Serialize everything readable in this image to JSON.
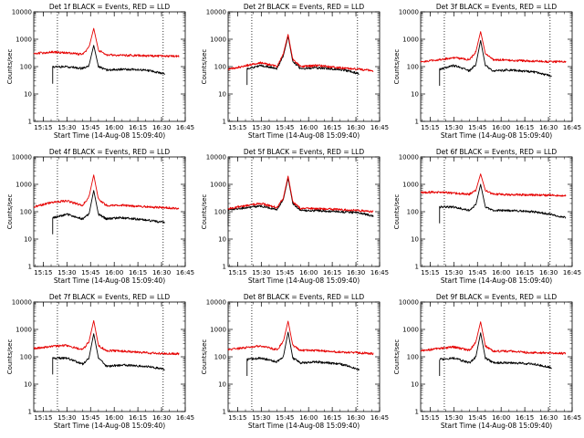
{
  "figure": {
    "ylabel": "Counts/sec",
    "xlabel": "Start Time (14-Aug-08 15:09:40)",
    "colors": {
      "events": "#000000",
      "lld": "#e60000",
      "axes": "#000000"
    }
  },
  "chart_data": [
    {
      "type": "line",
      "title": "Det 1f BLACK = Events, RED = LLD",
      "xlabel": "Start Time (14-Aug-08 15:09:40)",
      "ylabel": "Counts/sec",
      "x_ticks": [
        "15:15",
        "15:30",
        "15:45",
        "16:00",
        "16:15",
        "16:30",
        "16:45"
      ],
      "y_ticks": [
        "1",
        "10",
        "100",
        "1000",
        "10000"
      ],
      "yscale": "log",
      "ylim": [
        1,
        10000
      ],
      "xlim": [
        "15:09",
        "16:45"
      ],
      "vlines": [
        "15:24",
        "16:31"
      ],
      "series": [
        {
          "name": "Events",
          "color": "#000000",
          "start": "15:21",
          "end": "16:32",
          "x": [
            "15:21",
            "15:30",
            "15:40",
            "15:44",
            "15:47",
            "15:50",
            "15:55",
            "16:05",
            "16:20",
            "16:32"
          ],
          "y": [
            95,
            100,
            85,
            110,
            600,
            100,
            75,
            80,
            75,
            55
          ]
        },
        {
          "name": "LLD",
          "color": "#e60000",
          "start": "15:09",
          "end": "16:41",
          "x": [
            "15:09",
            "15:21",
            "15:30",
            "15:40",
            "15:44",
            "15:47",
            "15:50",
            "15:55",
            "16:05",
            "16:20",
            "16:32",
            "16:41"
          ],
          "y": [
            300,
            340,
            320,
            280,
            500,
            2500,
            400,
            270,
            260,
            250,
            240,
            240
          ]
        }
      ]
    },
    {
      "type": "line",
      "title": "Det 2f BLACK = Events, RED = LLD",
      "xlabel": "Start Time (14-Aug-08 15:09:40)",
      "ylabel": "Counts/sec",
      "x_ticks": [
        "15:15",
        "15:30",
        "15:45",
        "16:00",
        "16:15",
        "16:30",
        "16:45"
      ],
      "y_ticks": [
        "1",
        "10",
        "100",
        "1000",
        "10000"
      ],
      "yscale": "log",
      "ylim": [
        1,
        10000
      ],
      "xlim": [
        "15:09",
        "16:45"
      ],
      "vlines": [
        "15:24",
        "16:31"
      ],
      "series": [
        {
          "name": "Events",
          "color": "#000000",
          "start": "15:21",
          "end": "16:32",
          "x": [
            "15:21",
            "15:30",
            "15:40",
            "15:44",
            "15:47",
            "15:50",
            "15:55",
            "16:05",
            "16:20",
            "16:32"
          ],
          "y": [
            85,
            110,
            85,
            250,
            1300,
            150,
            85,
            90,
            80,
            55
          ]
        },
        {
          "name": "LLD",
          "color": "#e60000",
          "start": "15:09",
          "end": "16:41",
          "x": [
            "15:09",
            "15:21",
            "15:30",
            "15:40",
            "15:44",
            "15:47",
            "15:50",
            "15:55",
            "16:05",
            "16:20",
            "16:32",
            "16:41"
          ],
          "y": [
            80,
            110,
            140,
            100,
            300,
            1500,
            180,
            100,
            110,
            90,
            80,
            70
          ]
        }
      ]
    },
    {
      "type": "line",
      "title": "Det 3f BLACK = Events, RED = LLD",
      "xlabel": "Start Time (14-Aug-08 15:09:40)",
      "ylabel": "Counts/sec",
      "x_ticks": [
        "15:15",
        "15:30",
        "15:45",
        "16:00",
        "16:15",
        "16:30",
        "16:45"
      ],
      "y_ticks": [
        "1",
        "10",
        "100",
        "1000",
        "10000"
      ],
      "yscale": "log",
      "ylim": [
        1,
        10000
      ],
      "xlim": [
        "15:09",
        "16:45"
      ],
      "vlines": [
        "15:24",
        "16:31"
      ],
      "series": [
        {
          "name": "Events",
          "color": "#000000",
          "start": "15:21",
          "end": "16:32",
          "x": [
            "15:21",
            "15:30",
            "15:40",
            "15:44",
            "15:47",
            "15:50",
            "15:55",
            "16:05",
            "16:20",
            "16:32"
          ],
          "y": [
            80,
            110,
            70,
            120,
            900,
            110,
            70,
            75,
            65,
            45
          ]
        },
        {
          "name": "LLD",
          "color": "#e60000",
          "start": "15:09",
          "end": "16:41",
          "x": [
            "15:09",
            "15:21",
            "15:30",
            "15:40",
            "15:44",
            "15:47",
            "15:50",
            "15:55",
            "16:05",
            "16:20",
            "16:32",
            "16:41"
          ],
          "y": [
            150,
            180,
            210,
            180,
            350,
            1900,
            300,
            180,
            170,
            160,
            150,
            150
          ]
        }
      ]
    },
    {
      "type": "line",
      "title": "Det 4f BLACK = Events, RED = LLD",
      "xlabel": "Start Time (14-Aug-08 15:09:40)",
      "ylabel": "Counts/sec",
      "x_ticks": [
        "15:15",
        "15:30",
        "15:45",
        "16:00",
        "16:15",
        "16:30",
        "16:45"
      ],
      "y_ticks": [
        "1",
        "10",
        "100",
        "1000",
        "10000"
      ],
      "yscale": "log",
      "ylim": [
        1,
        10000
      ],
      "xlim": [
        "15:09",
        "16:45"
      ],
      "vlines": [
        "15:24",
        "16:31"
      ],
      "series": [
        {
          "name": "Events",
          "color": "#000000",
          "start": "15:21",
          "end": "16:32",
          "x": [
            "15:21",
            "15:30",
            "15:40",
            "15:44",
            "15:47",
            "15:50",
            "15:55",
            "16:05",
            "16:20",
            "16:32"
          ],
          "y": [
            60,
            80,
            55,
            80,
            600,
            80,
            55,
            60,
            50,
            40
          ]
        },
        {
          "name": "LLD",
          "color": "#e60000",
          "start": "15:09",
          "end": "16:41",
          "x": [
            "15:09",
            "15:21",
            "15:30",
            "15:40",
            "15:44",
            "15:47",
            "15:50",
            "15:55",
            "16:05",
            "16:20",
            "16:32",
            "16:41"
          ],
          "y": [
            150,
            220,
            250,
            170,
            350,
            2200,
            280,
            170,
            170,
            150,
            140,
            130
          ]
        }
      ]
    },
    {
      "type": "line",
      "title": "Det 5f BLACK = Events, RED = LLD",
      "xlabel": "Start Time (14-Aug-08 15:09:40)",
      "ylabel": "Counts/sec",
      "x_ticks": [
        "15:15",
        "15:30",
        "15:45",
        "16:00",
        "16:15",
        "16:30",
        "16:45"
      ],
      "y_ticks": [
        "1",
        "10",
        "100",
        "1000",
        "10000"
      ],
      "yscale": "log",
      "ylim": [
        1,
        10000
      ],
      "xlim": [
        "15:09",
        "16:45"
      ],
      "vlines": [
        "15:24",
        "16:31"
      ],
      "series": [
        {
          "name": "Events",
          "color": "#000000",
          "start": "15:09",
          "end": "16:41",
          "x": [
            "15:09",
            "15:21",
            "15:30",
            "15:40",
            "15:44",
            "15:47",
            "15:50",
            "15:55",
            "16:05",
            "16:20",
            "16:32",
            "16:41"
          ],
          "y": [
            120,
            140,
            160,
            120,
            280,
            1700,
            200,
            110,
            110,
            100,
            90,
            70
          ]
        },
        {
          "name": "LLD",
          "color": "#e60000",
          "start": "15:09",
          "end": "16:41",
          "x": [
            "15:09",
            "15:21",
            "15:30",
            "15:40",
            "15:44",
            "15:47",
            "15:50",
            "15:55",
            "16:05",
            "16:20",
            "16:32",
            "16:41"
          ],
          "y": [
            130,
            170,
            200,
            140,
            320,
            2000,
            230,
            130,
            130,
            120,
            110,
            100
          ]
        }
      ]
    },
    {
      "type": "line",
      "title": "Det 6f BLACK = Events, RED = LLD",
      "xlabel": "Start Time (14-Aug-08 15:09:40)",
      "ylabel": "Counts/sec",
      "x_ticks": [
        "15:15",
        "15:30",
        "15:45",
        "16:00",
        "16:15",
        "16:30",
        "16:45"
      ],
      "y_ticks": [
        "1",
        "10",
        "100",
        "1000",
        "10000"
      ],
      "yscale": "log",
      "ylim": [
        1,
        10000
      ],
      "xlim": [
        "15:09",
        "16:45"
      ],
      "vlines": [
        "15:24",
        "16:31"
      ],
      "series": [
        {
          "name": "Events",
          "color": "#000000",
          "start": "15:21",
          "end": "16:41",
          "x": [
            "15:21",
            "15:30",
            "15:40",
            "15:44",
            "15:47",
            "15:50",
            "15:55",
            "16:05",
            "16:20",
            "16:32",
            "16:41"
          ],
          "y": [
            150,
            150,
            110,
            180,
            1000,
            150,
            110,
            110,
            100,
            80,
            60
          ]
        },
        {
          "name": "LLD",
          "color": "#e60000",
          "start": "15:09",
          "end": "16:41",
          "x": [
            "15:09",
            "15:21",
            "15:30",
            "15:40",
            "15:44",
            "15:47",
            "15:50",
            "15:55",
            "16:05",
            "16:20",
            "16:32",
            "16:41"
          ],
          "y": [
            500,
            520,
            470,
            440,
            600,
            2400,
            600,
            440,
            420,
            410,
            400,
            390
          ]
        }
      ]
    },
    {
      "type": "line",
      "title": "Det 7f BLACK = Events, RED = LLD",
      "xlabel": "Start Time (14-Aug-08 15:09:40)",
      "ylabel": "Counts/sec",
      "x_ticks": [
        "15:15",
        "15:30",
        "15:45",
        "16:00",
        "16:15",
        "16:30",
        "16:45"
      ],
      "y_ticks": [
        "1",
        "10",
        "100",
        "1000",
        "10000"
      ],
      "yscale": "log",
      "ylim": [
        1,
        10000
      ],
      "xlim": [
        "15:09",
        "16:45"
      ],
      "vlines": [
        "15:24",
        "16:31"
      ],
      "series": [
        {
          "name": "Events",
          "color": "#000000",
          "start": "15:21",
          "end": "16:32",
          "x": [
            "15:21",
            "15:30",
            "15:40",
            "15:44",
            "15:47",
            "15:50",
            "15:55",
            "16:05",
            "16:20",
            "16:32"
          ],
          "y": [
            90,
            90,
            55,
            90,
            700,
            90,
            45,
            50,
            45,
            35
          ]
        },
        {
          "name": "LLD",
          "color": "#e60000",
          "start": "15:09",
          "end": "16:41",
          "x": [
            "15:09",
            "15:21",
            "15:30",
            "15:40",
            "15:44",
            "15:47",
            "15:50",
            "15:55",
            "16:05",
            "16:20",
            "16:32",
            "16:41"
          ],
          "y": [
            200,
            240,
            260,
            180,
            360,
            2100,
            260,
            170,
            160,
            140,
            130,
            130
          ]
        }
      ]
    },
    {
      "type": "line",
      "title": "Det 8f BLACK = Events, RED = LLD",
      "xlabel": "Start Time (14-Aug-08 15:09:40)",
      "ylabel": "Counts/sec",
      "x_ticks": [
        "15:15",
        "15:30",
        "15:45",
        "16:00",
        "16:15",
        "16:30",
        "16:45"
      ],
      "y_ticks": [
        "1",
        "10",
        "100",
        "1000",
        "10000"
      ],
      "yscale": "log",
      "ylim": [
        1,
        10000
      ],
      "xlim": [
        "15:09",
        "16:45"
      ],
      "vlines": [
        "15:24",
        "16:31"
      ],
      "series": [
        {
          "name": "Events",
          "color": "#000000",
          "start": "15:21",
          "end": "16:32",
          "x": [
            "15:21",
            "15:30",
            "15:40",
            "15:44",
            "15:47",
            "15:50",
            "15:55",
            "16:05",
            "16:20",
            "16:32"
          ],
          "y": [
            80,
            90,
            65,
            100,
            800,
            90,
            60,
            65,
            55,
            35
          ]
        },
        {
          "name": "LLD",
          "color": "#e60000",
          "start": "15:09",
          "end": "16:41",
          "x": [
            "15:09",
            "15:21",
            "15:30",
            "15:40",
            "15:44",
            "15:47",
            "15:50",
            "15:55",
            "16:05",
            "16:20",
            "16:32",
            "16:41"
          ],
          "y": [
            180,
            220,
            250,
            180,
            360,
            2000,
            260,
            170,
            170,
            150,
            140,
            130
          ]
        }
      ]
    },
    {
      "type": "line",
      "title": "Det 9f BLACK = Events, RED = LLD",
      "xlabel": "Start Time (14-Aug-08 15:09:40)",
      "ylabel": "Counts/sec",
      "x_ticks": [
        "15:15",
        "15:30",
        "15:45",
        "16:00",
        "16:15",
        "16:30",
        "16:45"
      ],
      "y_ticks": [
        "1",
        "10",
        "100",
        "1000",
        "10000"
      ],
      "yscale": "log",
      "ylim": [
        1,
        10000
      ],
      "xlim": [
        "15:09",
        "16:45"
      ],
      "vlines": [
        "15:24",
        "16:31"
      ],
      "series": [
        {
          "name": "Events",
          "color": "#000000",
          "start": "15:21",
          "end": "16:32",
          "x": [
            "15:21",
            "15:30",
            "15:40",
            "15:44",
            "15:47",
            "15:50",
            "15:55",
            "16:05",
            "16:20",
            "16:32"
          ],
          "y": [
            80,
            90,
            60,
            100,
            750,
            90,
            60,
            60,
            55,
            40
          ]
        },
        {
          "name": "LLD",
          "color": "#e60000",
          "start": "15:09",
          "end": "16:41",
          "x": [
            "15:09",
            "15:21",
            "15:30",
            "15:40",
            "15:44",
            "15:47",
            "15:50",
            "15:55",
            "16:05",
            "16:20",
            "16:32",
            "16:41"
          ],
          "y": [
            170,
            200,
            230,
            170,
            350,
            1900,
            250,
            160,
            160,
            140,
            140,
            130
          ]
        }
      ]
    }
  ]
}
